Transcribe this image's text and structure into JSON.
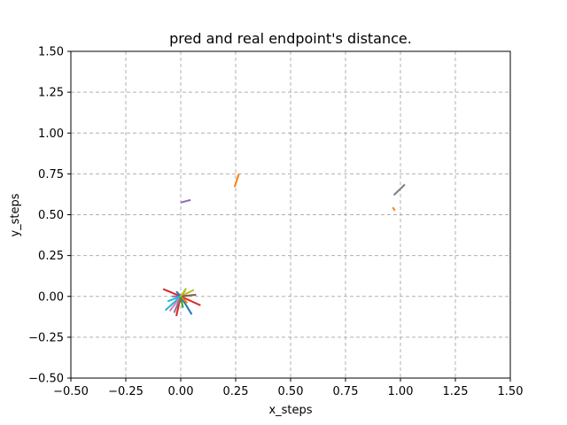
{
  "chart_data": {
    "type": "line",
    "title": "pred and real endpoint's distance.",
    "xlabel": "x_steps",
    "ylabel": "y_steps",
    "xlim": [
      -0.5,
      1.5
    ],
    "ylim": [
      -0.5,
      1.5
    ],
    "xticks": [
      "−0.50",
      "−0.25",
      "0.00",
      "0.25",
      "0.50",
      "0.75",
      "1.00",
      "1.25",
      "1.50"
    ],
    "xtick_values": [
      -0.5,
      -0.25,
      0,
      0.25,
      0.5,
      0.75,
      1.0,
      1.25,
      1.5
    ],
    "yticks": [
      "−0.50",
      "−0.25",
      "0.00",
      "0.25",
      "0.50",
      "0.75",
      "1.00",
      "1.25",
      "1.50"
    ],
    "ytick_values": [
      -0.5,
      -0.25,
      0,
      0.25,
      0.5,
      0.75,
      1.0,
      1.25,
      1.5
    ],
    "grid": true,
    "grid_style": "dashed",
    "series": [
      {
        "color": "#ff7f0e",
        "x": [
          0.245,
          0.265
        ],
        "y": [
          0.67,
          0.75
        ]
      },
      {
        "color": "#9467bd",
        "x": [
          0.0,
          0.045
        ],
        "y": [
          0.575,
          0.59
        ]
      },
      {
        "color": "#7f7f7f",
        "x": [
          0.97,
          1.02
        ],
        "y": [
          0.62,
          0.685
        ]
      },
      {
        "color": "#ff7f0e",
        "x": [
          0.965,
          0.975
        ],
        "y": [
          0.545,
          0.525
        ]
      },
      {
        "color": "#d62728",
        "x": [
          0.0,
          -0.08
        ],
        "y": [
          0.0,
          0.045
        ]
      },
      {
        "color": "#d62728",
        "x": [
          0.0,
          0.09
        ],
        "y": [
          0.0,
          -0.055
        ]
      },
      {
        "color": "#d62728",
        "x": [
          0.0,
          -0.02
        ],
        "y": [
          0.0,
          -0.12
        ]
      },
      {
        "color": "#bcbd22",
        "x": [
          0.0,
          0.06
        ],
        "y": [
          0.0,
          0.04
        ]
      },
      {
        "color": "#2ca02c",
        "x": [
          0.0,
          0.02
        ],
        "y": [
          0.0,
          0.035
        ]
      },
      {
        "color": "#17becf",
        "x": [
          0.0,
          -0.07
        ],
        "y": [
          0.0,
          -0.085
        ]
      },
      {
        "color": "#1f77b4",
        "x": [
          0.0,
          0.05
        ],
        "y": [
          0.0,
          -0.11
        ]
      },
      {
        "color": "#1f77b4",
        "x": [
          0.0,
          -0.02
        ],
        "y": [
          0.0,
          0.03
        ]
      },
      {
        "color": "#8c564b",
        "x": [
          0.0,
          0.07
        ],
        "y": [
          0.0,
          0.01
        ]
      },
      {
        "color": "#e377c2",
        "x": [
          0.0,
          -0.05
        ],
        "y": [
          0.0,
          -0.09
        ]
      },
      {
        "color": "#7f7f7f",
        "x": [
          0.0,
          -0.03
        ],
        "y": [
          0.0,
          -0.1
        ]
      },
      {
        "color": "#9467bd",
        "x": [
          0.0,
          -0.04
        ],
        "y": [
          0.0,
          0.0
        ]
      },
      {
        "color": "#ff7f0e",
        "x": [
          0.0,
          0.03
        ],
        "y": [
          0.0,
          -0.04
        ]
      },
      {
        "color": "#2ca02c",
        "x": [
          0.0,
          0.01
        ],
        "y": [
          0.0,
          -0.07
        ]
      },
      {
        "color": "#17becf",
        "x": [
          0.0,
          -0.06
        ],
        "y": [
          0.0,
          -0.03
        ]
      },
      {
        "color": "#bcbd22",
        "x": [
          0.0,
          0.025
        ],
        "y": [
          0.0,
          0.05
        ]
      }
    ]
  }
}
